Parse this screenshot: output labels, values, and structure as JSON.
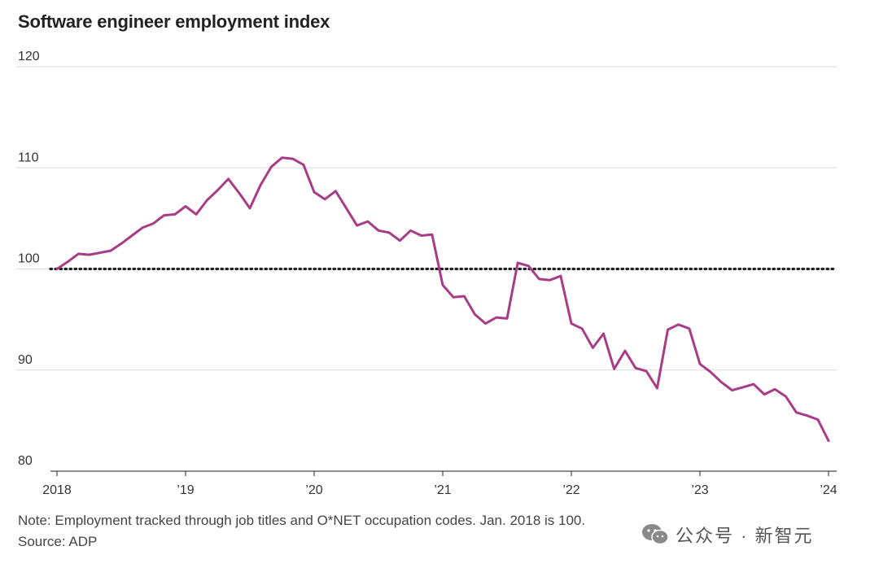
{
  "chart_data": {
    "type": "line",
    "title": "Software engineer employment index",
    "xlabel": "",
    "ylabel": "",
    "ylim": [
      80,
      120
    ],
    "xlim": [
      2018,
      2024
    ],
    "yticks": [
      {
        "value": 80,
        "label": "80"
      },
      {
        "value": 90,
        "label": "90"
      },
      {
        "value": 100,
        "label": "100"
      },
      {
        "value": 110,
        "label": "110"
      },
      {
        "value": 120,
        "label": "120"
      }
    ],
    "xticks": [
      {
        "value": 2018,
        "label": "2018"
      },
      {
        "value": 2019,
        "label": "’19"
      },
      {
        "value": 2020,
        "label": "’20"
      },
      {
        "value": 2021,
        "label": "’21"
      },
      {
        "value": 2022,
        "label": "’22"
      },
      {
        "value": 2023,
        "label": "’23"
      },
      {
        "value": 2024,
        "label": "’24"
      }
    ],
    "reference_line": {
      "value": 100,
      "style": "dotted"
    },
    "series": [
      {
        "name": "Software engineer employment index",
        "color": "#a83c86",
        "x": [
          2018.0,
          2018.083,
          2018.167,
          2018.25,
          2018.333,
          2018.417,
          2018.5,
          2018.583,
          2018.667,
          2018.75,
          2018.833,
          2018.917,
          2019.0,
          2019.083,
          2019.167,
          2019.25,
          2019.333,
          2019.417,
          2019.5,
          2019.583,
          2019.667,
          2019.75,
          2019.833,
          2019.917,
          2020.0,
          2020.083,
          2020.167,
          2020.25,
          2020.333,
          2020.417,
          2020.5,
          2020.583,
          2020.667,
          2020.75,
          2020.833,
          2020.917,
          2021.0,
          2021.083,
          2021.167,
          2021.25,
          2021.333,
          2021.417,
          2021.5,
          2021.583,
          2021.667,
          2021.75,
          2021.833,
          2021.917,
          2022.0,
          2022.083,
          2022.167,
          2022.25,
          2022.333,
          2022.417,
          2022.5,
          2022.583,
          2022.667,
          2022.75,
          2022.833,
          2022.917,
          2023.0,
          2023.083,
          2023.167,
          2023.25,
          2023.333,
          2023.417,
          2023.5,
          2023.583,
          2023.667,
          2023.75,
          2023.833,
          2023.917,
          2024.0
        ],
        "values": [
          100.0,
          100.7,
          101.5,
          101.4,
          101.6,
          101.8,
          102.5,
          103.3,
          104.1,
          104.5,
          105.3,
          105.4,
          106.2,
          105.4,
          106.8,
          107.8,
          108.9,
          107.5,
          106.0,
          108.3,
          110.1,
          111.0,
          110.9,
          110.3,
          107.6,
          106.9,
          107.7,
          106.0,
          104.3,
          104.7,
          103.8,
          103.6,
          102.8,
          103.8,
          103.3,
          103.4,
          98.4,
          97.2,
          97.3,
          95.5,
          94.6,
          95.2,
          95.1,
          100.6,
          100.3,
          99.0,
          98.9,
          99.3,
          94.6,
          94.1,
          92.2,
          93.6,
          90.1,
          91.9,
          90.2,
          89.9,
          88.2,
          94.0,
          94.5,
          94.1,
          90.6,
          89.8,
          88.8,
          88.0,
          88.3,
          88.6,
          87.6,
          88.1,
          87.4,
          85.8,
          85.5,
          85.1,
          83.0
        ]
      }
    ]
  },
  "footer": {
    "note": "Note: Employment tracked through job titles and O*NET occupation codes. Jan. 2018 is 100.",
    "source": "Source: ADP"
  },
  "watermark": {
    "text": "公众号 · 新智元",
    "icon": "wechat-icon"
  }
}
